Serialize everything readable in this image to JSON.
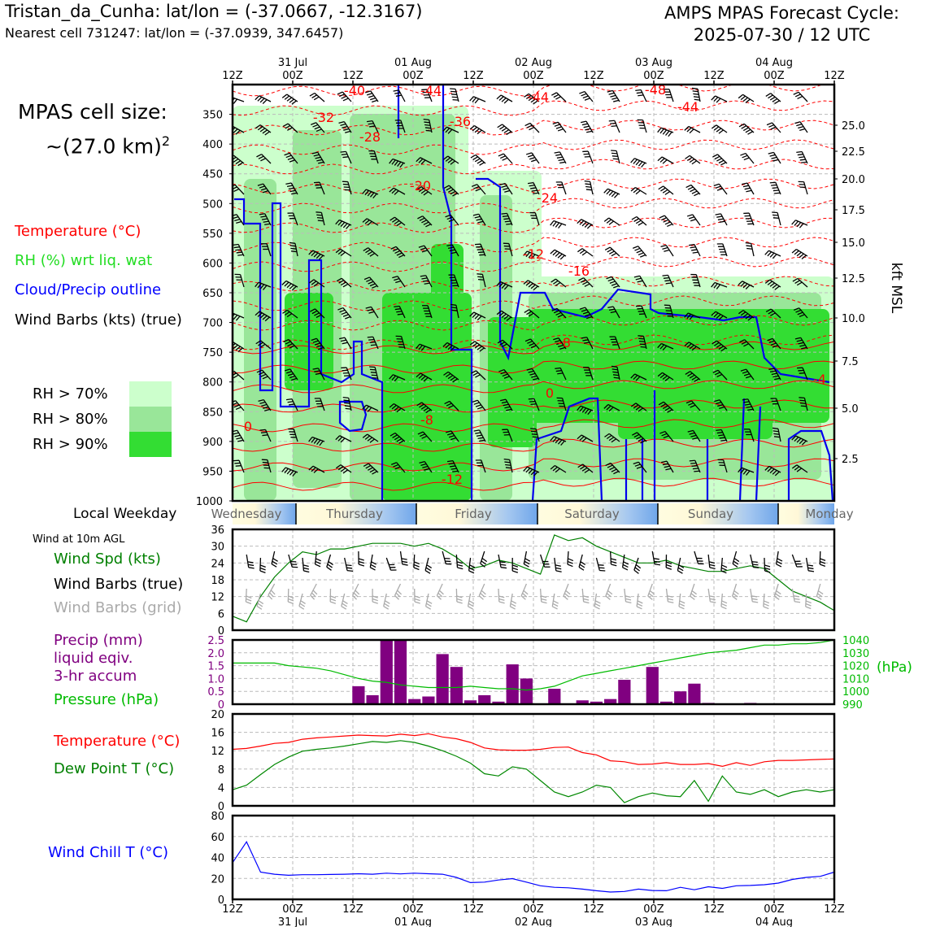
{
  "header": {
    "location": "Tristan_da_Cunha: lat/lon = (-37.0667, -12.3167)",
    "nearest_cell": "Nearest cell 731247: lat/lon = (-37.0939, 347.6457)",
    "forecast_title": "AMPS MPAS Forecast Cycle:",
    "forecast_cycle": "2025-07-30 / 12 UTC"
  },
  "cell_size": {
    "line1": "MPAS cell size:",
    "line2_prefix": "~(27.0 km)",
    "line2_sup": "2"
  },
  "legend": {
    "temperature": "Temperature (°C)",
    "rh": "RH (%) wrt liq. wat",
    "cloud": "Cloud/Precip outline",
    "wind": "Wind Barbs (kts) (true)",
    "rh70": "RH > 70%",
    "rh80": "RH > 80%",
    "rh90": "RH > 90%"
  },
  "colors": {
    "rh70": "#ccffcc",
    "rh80": "#99e699",
    "rh90": "#33dd33",
    "temperature": "#ff0000",
    "dewpoint": "#008800",
    "pressure": "#00bb00",
    "precip": "#800080",
    "windspd": "#008000",
    "windchill": "#0000ff",
    "cloud": "#0000ee"
  },
  "time_axis": {
    "top_ticks": [
      "12Z",
      "00Z",
      "12Z",
      "00Z",
      "12Z",
      "00Z",
      "12Z",
      "00Z",
      "12Z",
      "00Z",
      "12Z"
    ],
    "date_labels": [
      "31 Jul",
      "01 Aug",
      "02 Aug",
      "03 Aug",
      "04 Aug"
    ],
    "weekday_title": "Local Weekday",
    "weekdays": [
      "Wednesday",
      "Thursday",
      "Friday",
      "Saturday",
      "Sunday",
      "Monday"
    ]
  },
  "chart_data": [
    {
      "type": "heatmap",
      "left_axis_label": "",
      "left_ticks": [
        "350",
        "400",
        "450",
        "500",
        "550",
        "600",
        "650",
        "700",
        "750",
        "800",
        "850",
        "900",
        "950",
        "1000"
      ],
      "right_axis_label": "kft MSL",
      "right_ticks": [
        "25.0",
        "22.5",
        "20.0",
        "17.5",
        "15.0",
        "12.5",
        "10.0",
        "7.5",
        "5.0",
        "2.5"
      ],
      "temperature_labels": [
        "-40",
        "-44",
        "-32",
        "-36",
        "-28",
        "-44",
        "-48",
        "-44",
        "-20",
        "-24",
        "-12",
        "-16",
        "-8",
        "0",
        "-8",
        "-12",
        "-4",
        "0"
      ],
      "note": "RH shading, temperature contours, cloud outline, wind barbs"
    },
    {
      "type": "line",
      "title": "Wind at 10m AGL",
      "series_labels": [
        "Wind Spd (kts)",
        "Wind Barbs (true)",
        "Wind Barbs (grid)"
      ],
      "ylim": [
        0,
        36
      ],
      "yticks": [
        "0",
        "6",
        "12",
        "18",
        "24",
        "30",
        "36"
      ],
      "series": [
        {
          "name": "Wind Spd (kts)",
          "values": [
            5,
            3,
            12,
            19,
            24,
            28,
            27,
            29,
            29,
            30,
            31,
            31,
            31,
            30,
            31,
            29,
            26,
            22,
            23,
            25,
            24,
            22,
            20,
            34,
            32,
            33,
            30,
            28,
            26,
            24,
            24,
            25,
            23,
            22,
            21,
            21,
            22,
            23,
            22,
            18,
            14,
            12,
            10,
            7
          ]
        }
      ]
    },
    {
      "type": "bar",
      "series_labels": [
        "Precip (mm)",
        "liquid eqiv.",
        "3-hr accum",
        "Pressure (hPa)"
      ],
      "right_label": "(hPa)",
      "ylim": [
        0,
        2.5
      ],
      "yticks": [
        "0",
        "0.5",
        "1.0",
        "1.5",
        "2.0",
        "2.5"
      ],
      "right_ticks": [
        "990",
        "1000",
        "1010",
        "1020",
        "1030",
        "1040"
      ],
      "series": [
        {
          "name": "Precip (mm)",
          "values": [
            0,
            0,
            0,
            0,
            0,
            0,
            0,
            0,
            0,
            0.7,
            0.35,
            2.5,
            2.5,
            0.2,
            0.3,
            1.95,
            1.45,
            0.15,
            0.35,
            0.1,
            1.55,
            1.0,
            0,
            0.6,
            0,
            0.15,
            0.1,
            0.2,
            0.95,
            0,
            1.45,
            0.1,
            0.5,
            0.8,
            0.05,
            0,
            0,
            0.05,
            0,
            0,
            0,
            0,
            0,
            0
          ]
        },
        {
          "name": "Pressure (hPa)",
          "values": [
            1022,
            1022,
            1022,
            1022,
            1020,
            1019,
            1018,
            1016,
            1013,
            1010,
            1008,
            1007,
            1005,
            1004,
            1003,
            1003,
            1003,
            1004,
            1003,
            1002,
            1002,
            1001,
            1002,
            1004,
            1008,
            1012,
            1014,
            1016,
            1018,
            1020,
            1022,
            1024,
            1026,
            1028,
            1030,
            1031,
            1032,
            1034,
            1036,
            1036,
            1037,
            1037,
            1038,
            1040
          ]
        }
      ]
    },
    {
      "type": "line",
      "series_labels": [
        "Temperature (°C)",
        "Dew Point T (°C)"
      ],
      "ylim": [
        0,
        20
      ],
      "yticks": [
        "0",
        "4",
        "8",
        "12",
        "16",
        "20"
      ],
      "series": [
        {
          "name": "Temperature (°C)",
          "values": [
            12.3,
            12.5,
            13,
            13.6,
            13.8,
            14.5,
            14.8,
            15,
            15.2,
            15.4,
            15.3,
            15.2,
            15.6,
            15.3,
            15.7,
            15,
            14.6,
            13.8,
            12.6,
            12.2,
            12.1,
            12.1,
            12.3,
            12.7,
            12.8,
            11.6,
            11.1,
            9.8,
            9.6,
            9.0,
            9.1,
            9.4,
            9.0,
            9.0,
            9.2,
            8.6,
            9.4,
            8.8,
            9.6,
            9.9,
            9.9,
            10.0,
            10.1,
            10.2
          ]
        },
        {
          "name": "Dew Point T (°C)",
          "values": [
            3.5,
            4.5,
            6.8,
            9.0,
            10.6,
            11.9,
            12.3,
            12.6,
            13.0,
            13.5,
            14.0,
            13.8,
            14.2,
            13.8,
            13.0,
            12.0,
            10.8,
            9.3,
            7.0,
            6.5,
            8.5,
            8.0,
            5.5,
            3.0,
            2.0,
            3.0,
            4.5,
            4.0,
            0.7,
            2.0,
            2.8,
            2.2,
            2.0,
            5.5,
            1.0,
            6.5,
            3.0,
            2.5,
            3.5,
            2.0,
            3.0,
            3.5,
            3.0,
            3.5
          ]
        }
      ]
    },
    {
      "type": "line",
      "series_labels": [
        "Wind Chill T (°C)"
      ],
      "ylim": [
        0,
        80
      ],
      "yticks": [
        "0",
        "20",
        "40",
        "60",
        "80"
      ],
      "x_ticks_bottom": [
        "12Z",
        "00Z",
        "12Z",
        "00Z",
        "12Z",
        "00Z",
        "12Z",
        "00Z",
        "12Z",
        "00Z",
        "12Z"
      ],
      "series": [
        {
          "name": "Wind Chill T (°C)",
          "values": [
            35,
            55,
            26,
            24,
            23,
            23.5,
            23.5,
            23.8,
            24,
            24.5,
            24,
            25,
            24.3,
            25,
            24.5,
            24,
            21,
            16,
            16.5,
            18.5,
            19.8,
            16.5,
            13,
            11.5,
            11,
            9.8,
            8.2,
            7,
            7.5,
            9.8,
            8.5,
            8.2,
            11.5,
            9.2,
            12,
            10.5,
            13,
            13.3,
            14,
            15.5,
            19,
            21,
            22,
            26
          ]
        }
      ]
    }
  ]
}
